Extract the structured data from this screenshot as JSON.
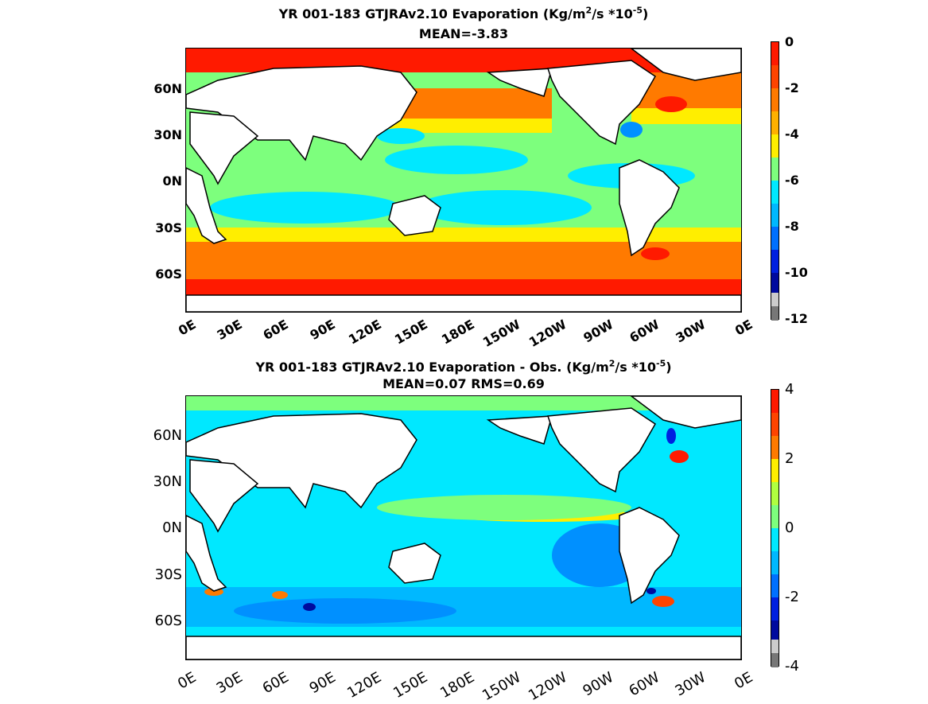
{
  "panels": [
    {
      "title_main": "YR 001-183 GTJRAv2.10  Evaporation (Kg/m",
      "title_sup1": "2",
      "title_mid": "/s *10",
      "title_sup2": "-5",
      "title_end": ")",
      "subtitle": "MEAN=-3.83",
      "lat_labels": [
        "60N",
        "30N",
        "0N",
        "30S",
        "60S"
      ],
      "lon_labels": [
        "0E",
        "30E",
        "60E",
        "90E",
        "120E",
        "150E",
        "180E",
        "150W",
        "120W",
        "90W",
        "60W",
        "30W",
        "0E"
      ],
      "colorbar_ticks": [
        "0",
        "-2",
        "-4",
        "-6",
        "-8",
        "-10",
        "-12"
      ]
    },
    {
      "title_main": "YR 001-183 GTJRAv2.10 Evaporation - Obs. (Kg/m",
      "title_sup1": "2",
      "title_mid": "/s *10",
      "title_sup2": "-5",
      "title_end": ")",
      "subtitle": "MEAN=0.07   RMS=0.69",
      "lat_labels": [
        "60N",
        "30N",
        "0N",
        "30S",
        "60S"
      ],
      "lon_labels": [
        "0E",
        "30E",
        "60E",
        "90E",
        "120E",
        "150E",
        "180E",
        "150W",
        "120W",
        "90W",
        "60W",
        "30W",
        "0E"
      ],
      "colorbar_ticks": [
        "4",
        "2",
        "0",
        "-2",
        "-4"
      ]
    }
  ],
  "colors": {
    "red": "#ff1a00",
    "orange": "#ff7a00",
    "yellow": "#ffee00",
    "green": "#7dff7d",
    "cyan": "#00e8ff",
    "blue": "#0090ff",
    "navy": "#000a9e",
    "gray": "#777777",
    "land": "#ffffff"
  }
}
